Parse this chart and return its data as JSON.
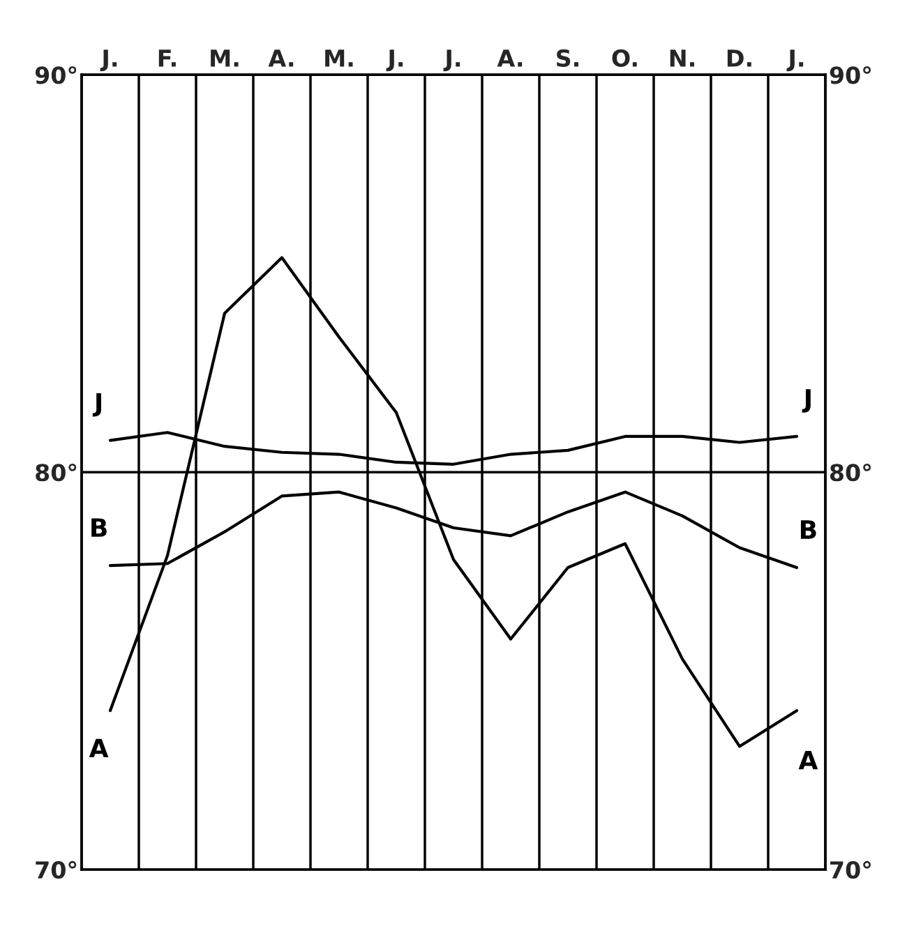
{
  "chart_data": {
    "type": "line",
    "categories": [
      "J.",
      "F.",
      "M.",
      "A.",
      "M.",
      "J.",
      "J.",
      "A.",
      "S.",
      "O.",
      "N.",
      "D.",
      "J."
    ],
    "ylim": [
      70,
      90
    ],
    "yticks": [
      {
        "value": 70,
        "label": "70°"
      },
      {
        "value": 80,
        "label": "80°"
      },
      {
        "value": 90,
        "label": "90°"
      }
    ],
    "y2lim": [
      70,
      90
    ],
    "y2ticks": [
      {
        "value": 70,
        "label": "70°"
      },
      {
        "value": 80,
        "label": "80°"
      },
      {
        "value": 90,
        "label": "90°"
      }
    ],
    "grid": "x",
    "legend": false,
    "marker": "none",
    "line_style": "solid",
    "ref_lines": [
      {
        "axis": "y",
        "value": 80,
        "color": "#000000"
      }
    ],
    "series": [
      {
        "name": "J",
        "color": "#000000",
        "values": [
          80.8,
          81.0,
          80.65,
          80.5,
          80.45,
          80.25,
          80.2,
          80.45,
          80.55,
          80.9,
          80.9,
          80.75,
          80.9
        ]
      },
      {
        "name": "B",
        "color": "#000000",
        "values": [
          77.65,
          77.7,
          78.5,
          79.4,
          79.5,
          79.1,
          78.6,
          78.4,
          79.0,
          79.5,
          78.9,
          78.1,
          77.6
        ]
      },
      {
        "name": "A",
        "color": "#000000",
        "values": [
          74.0,
          77.9,
          84.0,
          85.4,
          83.4,
          81.5,
          77.8,
          75.8,
          77.6,
          78.2,
          75.3,
          73.1,
          74.0
        ]
      }
    ]
  }
}
